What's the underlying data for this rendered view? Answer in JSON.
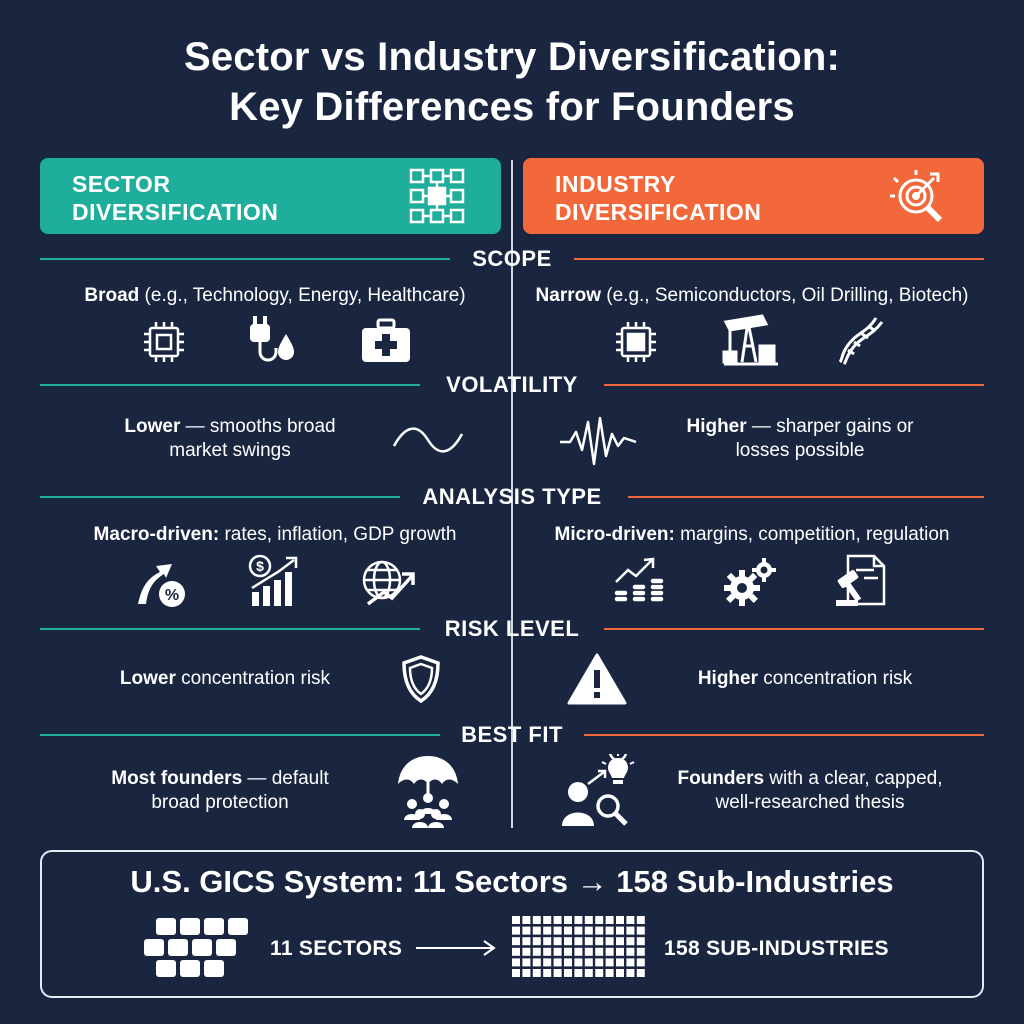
{
  "title": {
    "line1": "Sector vs Industry Diversification:",
    "line2": "Key Differences for Founders"
  },
  "colors": {
    "background": "#1a2540",
    "sector": "#1fae9b",
    "industry": "#f2683a",
    "text": "#ffffff"
  },
  "headers": {
    "sector": {
      "line1": "SECTOR",
      "line2": "DIVERSIFICATION",
      "icon": "network-grid-icon"
    },
    "industry": {
      "line1": "INDUSTRY",
      "line2": "DIVERSIFICATION",
      "icon": "target-magnifier-icon"
    }
  },
  "sections": {
    "scope": {
      "title": "SCOPE",
      "left": {
        "bold": "Broad",
        "rest": " (e.g., Technology, Energy, Healthcare)",
        "icons": [
          "microchip-icon",
          "power-plug-water-drop-icon",
          "medical-kit-icon"
        ]
      },
      "right": {
        "bold": "Narrow",
        "rest": " (e.g., Semiconductors, Oil Drilling, Biotech)",
        "icons": [
          "semiconductor-chip-icon",
          "oil-pump-icon",
          "dna-icon"
        ]
      }
    },
    "volatility": {
      "title": "VOLATILITY",
      "left": {
        "bold": "Lower",
        "rest": " — smooths broad",
        "line2": "market swings",
        "icon": "smooth-wave-icon"
      },
      "right": {
        "bold": "Higher",
        "rest": " — sharper gains or",
        "line2": "losses possible",
        "icon": "sharp-wave-icon"
      }
    },
    "analysis": {
      "title": "ANALYSIS TYPE",
      "left": {
        "bold": "Macro-driven:",
        "rest": " rates, inflation, GDP growth",
        "icons": [
          "percent-arrow-icon",
          "dollar-bar-chart-icon",
          "globe-trend-icon"
        ]
      },
      "right": {
        "bold": "Micro-driven:",
        "rest": " margins, competition, regulation",
        "icons": [
          "coins-trend-icon",
          "gears-icon",
          "gavel-document-icon"
        ]
      }
    },
    "risk": {
      "title": "RISK LEVEL",
      "left": {
        "bold": "Lower",
        "rest": " concentration risk",
        "icon": "shield-icon"
      },
      "right": {
        "bold": "Higher",
        "rest": " concentration risk",
        "icon": "warning-icon"
      }
    },
    "bestfit": {
      "title": "BEST FIT",
      "left": {
        "bold": "Most founders",
        "rest": " — default",
        "line2": "broad protection",
        "icon": "umbrella-people-icon"
      },
      "right": {
        "bold": "Founders",
        "rest": " with a clear, capped,",
        "line2": "well-researched thesis",
        "icon": "person-idea-search-icon"
      }
    }
  },
  "gics": {
    "title": "U.S. GICS System: 11 Sectors → 158 Sub-Industries",
    "sectors_label": "11 SECTORS",
    "subindustries_label": "158 SUB-INDUSTRIES",
    "sectors_count": 11,
    "arrow_icon": "arrow-right-icon"
  }
}
